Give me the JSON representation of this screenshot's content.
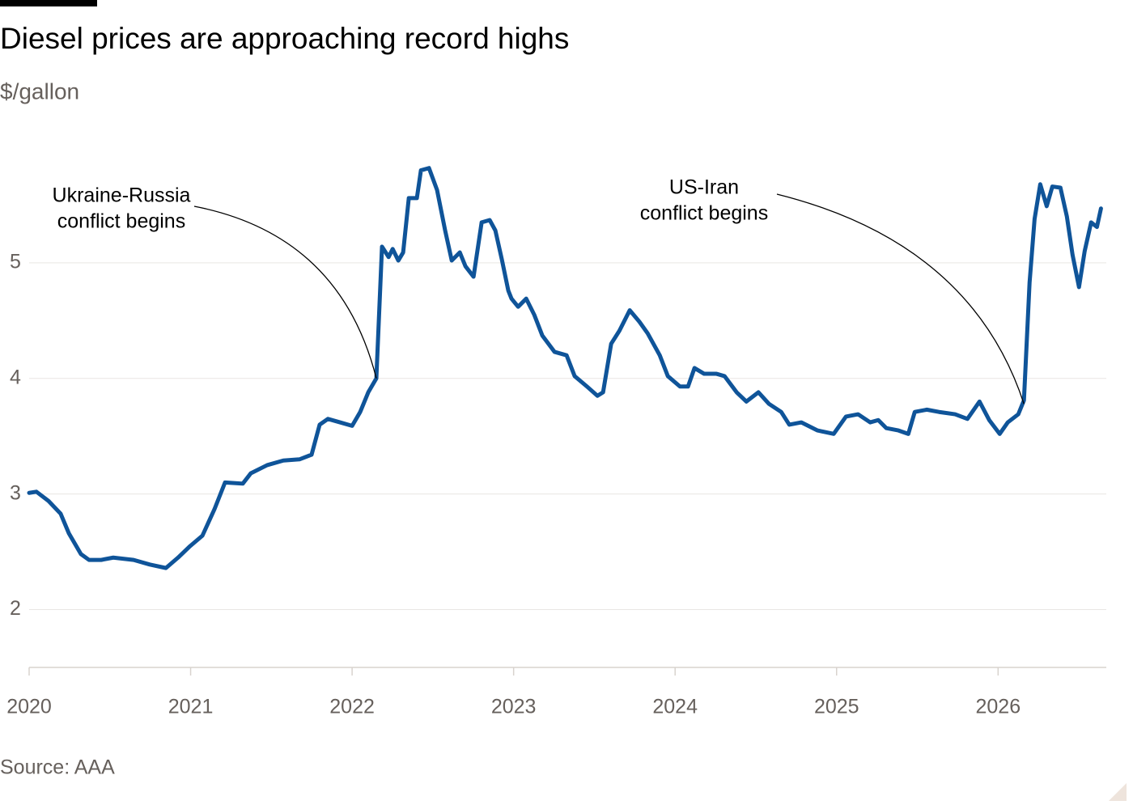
{
  "chart_data": {
    "type": "line",
    "title": "Diesel prices are approaching record highs",
    "subtitle": "$/gallon",
    "source": "Source: AAA",
    "xlim": [
      2020,
      2026.67
    ],
    "xticks": [
      2020,
      2021,
      2022,
      2023,
      2024,
      2025,
      2026
    ],
    "ylim": [
      1.5,
      6
    ],
    "yticks": [
      2,
      3,
      4,
      5
    ],
    "grid": true,
    "series": [
      {
        "name": "Diesel",
        "color": "#0f5499",
        "x": [
          2020.0,
          2020.045,
          2020.12,
          2020.195,
          2020.246,
          2020.321,
          2020.371,
          2020.446,
          2020.521,
          2020.647,
          2020.747,
          2020.847,
          2020.922,
          2020.997,
          2021.073,
          2021.148,
          2021.213,
          2021.323,
          2021.373,
          2021.474,
          2021.574,
          2021.674,
          2021.749,
          2021.799,
          2021.85,
          2021.925,
          2022.0,
          2022.05,
          2022.1,
          2022.15,
          2022.185,
          2022.226,
          2022.251,
          2022.286,
          2022.316,
          2022.351,
          2022.401,
          2022.426,
          2022.476,
          2022.526,
          2022.576,
          2022.617,
          2022.667,
          2022.702,
          2022.752,
          2022.802,
          2022.852,
          2022.887,
          2022.927,
          2022.967,
          2022.987,
          2023.028,
          2023.078,
          2023.128,
          2023.178,
          2023.253,
          2023.328,
          2023.378,
          2023.454,
          2023.519,
          2023.554,
          2023.604,
          2023.654,
          2023.719,
          2023.779,
          2023.83,
          2023.905,
          2023.955,
          2024.03,
          2024.08,
          2024.12,
          2024.18,
          2024.256,
          2024.306,
          2024.381,
          2024.441,
          2024.516,
          2024.581,
          2024.657,
          2024.707,
          2024.782,
          2024.882,
          2024.982,
          2025.058,
          2025.133,
          2025.208,
          2025.258,
          2025.308,
          2025.383,
          2025.444,
          2025.484,
          2025.559,
          2025.634,
          2025.734,
          2025.81,
          2025.885,
          2025.945,
          2026.01,
          2026.06,
          2026.125,
          2026.16,
          2026.195,
          2026.226,
          2026.261,
          2026.301,
          2026.336,
          2026.386,
          2026.426,
          2026.461,
          2026.501,
          2026.536,
          2026.576,
          2026.612,
          2026.637
        ],
        "values": [
          3.01,
          3.02,
          2.94,
          2.83,
          2.66,
          2.48,
          2.43,
          2.43,
          2.45,
          2.43,
          2.39,
          2.36,
          2.45,
          2.55,
          2.64,
          2.87,
          3.1,
          3.09,
          3.18,
          3.25,
          3.29,
          3.3,
          3.34,
          3.6,
          3.65,
          3.62,
          3.59,
          3.71,
          3.88,
          4.0,
          5.14,
          5.05,
          5.12,
          5.02,
          5.09,
          5.56,
          5.56,
          5.8,
          5.82,
          5.63,
          5.28,
          5.02,
          5.09,
          4.97,
          4.88,
          5.35,
          5.37,
          5.28,
          5.03,
          4.76,
          4.69,
          4.62,
          4.69,
          4.55,
          4.37,
          4.23,
          4.2,
          4.02,
          3.93,
          3.85,
          3.88,
          4.3,
          4.41,
          4.59,
          4.49,
          4.39,
          4.2,
          4.02,
          3.93,
          3.93,
          4.09,
          4.04,
          4.04,
          4.02,
          3.88,
          3.8,
          3.88,
          3.78,
          3.71,
          3.6,
          3.62,
          3.55,
          3.52,
          3.67,
          3.69,
          3.62,
          3.64,
          3.57,
          3.55,
          3.52,
          3.71,
          3.73,
          3.71,
          3.69,
          3.65,
          3.8,
          3.64,
          3.52,
          3.62,
          3.69,
          3.81,
          4.83,
          5.38,
          5.68,
          5.49,
          5.66,
          5.65,
          5.4,
          5.07,
          4.79,
          5.1,
          5.35,
          5.31,
          5.47
        ]
      }
    ],
    "annotations": [
      {
        "text": [
          "Ukraine-Russia",
          "conflict begins"
        ],
        "x": 2022.15,
        "y": 4.0
      },
      {
        "text": [
          "US-Iran",
          "conflict begins"
        ],
        "x": 2026.16,
        "y": 3.78
      }
    ]
  }
}
